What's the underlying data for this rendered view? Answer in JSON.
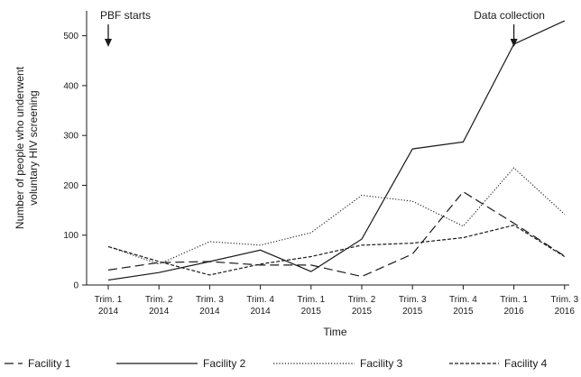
{
  "chart_data": {
    "type": "line",
    "title": "",
    "xlabel": "Time",
    "ylabel": [
      "Number of people who underwent",
      "voluntary HIV screening"
    ],
    "ylim": [
      0,
      550
    ],
    "yticks": [
      0,
      100,
      200,
      300,
      400,
      500
    ],
    "grid": false,
    "legend_position": "bottom",
    "categories": [
      [
        "Trim. 1",
        "2014"
      ],
      [
        "Trim. 2",
        "2014"
      ],
      [
        "Trim. 3",
        "2014"
      ],
      [
        "Trim. 4",
        "2014"
      ],
      [
        "Trim. 1",
        "2015"
      ],
      [
        "Trim. 2",
        "2015"
      ],
      [
        "Trim. 3",
        "2015"
      ],
      [
        "Trim. 4",
        "2015"
      ],
      [
        "Trim. 1",
        "2016"
      ],
      [
        "Trim. 3",
        "2016"
      ]
    ],
    "series": [
      {
        "name": "Facility 1",
        "dash": "long-dash",
        "values": [
          30,
          45,
          47,
          40,
          40,
          17,
          62,
          187,
          124,
          58
        ]
      },
      {
        "name": "Facility 2",
        "dash": "solid",
        "values": [
          10,
          25,
          47,
          70,
          27,
          92,
          273,
          287,
          483,
          530
        ]
      },
      {
        "name": "Facility 3",
        "dash": "dotted",
        "values": [
          77,
          42,
          87,
          80,
          105,
          180,
          168,
          118,
          235,
          142
        ]
      },
      {
        "name": "Facility 4",
        "dash": "short-dash",
        "values": [
          77,
          47,
          20,
          42,
          57,
          80,
          84,
          95,
          120,
          57
        ]
      }
    ],
    "annotations": [
      {
        "label": "PBF starts",
        "category_index": 0
      },
      {
        "label": "Data collection",
        "category_index": 8
      }
    ]
  }
}
